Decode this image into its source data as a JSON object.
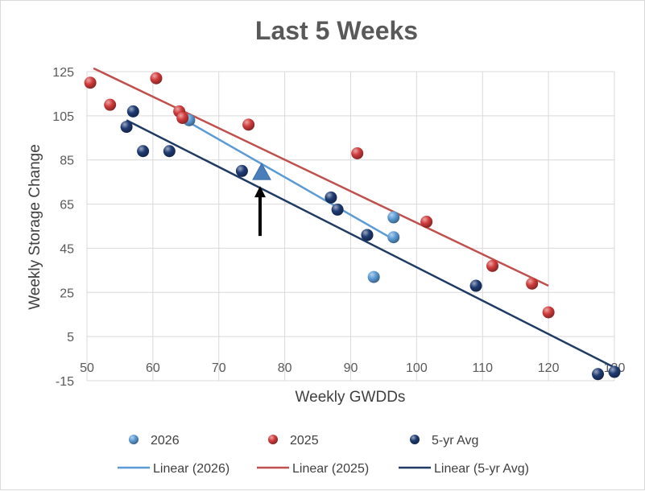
{
  "chart_data": {
    "type": "scatter",
    "title": "Last 5 Weeks",
    "xlabel": "Weekly GWDDs",
    "ylabel": "Weekly Storage Change",
    "xlim": [
      50,
      130
    ],
    "ylim": [
      -15,
      125
    ],
    "x_ticks": [
      50,
      60,
      70,
      80,
      90,
      100,
      110,
      120,
      130
    ],
    "x_tick_labels": [
      "50",
      "60",
      "70",
      "80",
      "90",
      "100",
      "110",
      "120",
      "130"
    ],
    "y_ticks": [
      -15,
      5,
      25,
      45,
      65,
      85,
      105,
      125
    ],
    "y_tick_labels": [
      "-15",
      "5",
      "25",
      "45",
      "65",
      "85",
      "105",
      "125"
    ],
    "grid": true,
    "legend_position": "bottom",
    "series": [
      {
        "name": "2026",
        "color": "#5b9bd5",
        "points": [
          [
            65.5,
            103
          ],
          [
            92.5,
            51
          ],
          [
            93.5,
            32
          ],
          [
            96.5,
            59
          ],
          [
            96.5,
            50
          ]
        ]
      },
      {
        "name": "2025",
        "color": "#d13b3b",
        "points": [
          [
            50.5,
            120
          ],
          [
            53.5,
            110
          ],
          [
            60.5,
            122
          ],
          [
            64,
            107
          ],
          [
            64.5,
            104
          ],
          [
            74.5,
            101
          ],
          [
            91,
            88
          ],
          [
            101.5,
            57
          ],
          [
            111.5,
            37
          ],
          [
            117.5,
            29
          ],
          [
            120,
            16
          ]
        ]
      },
      {
        "name": "5-yr Avg",
        "color": "#1f3b73",
        "points": [
          [
            56,
            100
          ],
          [
            57,
            107
          ],
          [
            58.5,
            89
          ],
          [
            62.5,
            89
          ],
          [
            73.5,
            80
          ],
          [
            87,
            68
          ],
          [
            88,
            62.5
          ],
          [
            92.5,
            51
          ],
          [
            109,
            28
          ],
          [
            127.5,
            -12
          ],
          [
            130,
            -11
          ]
        ]
      }
    ],
    "trendlines": [
      {
        "name": "Linear (2026)",
        "color": "#5b9bd5",
        "from": [
          65.5,
          102
        ],
        "to": [
          96.5,
          49
        ]
      },
      {
        "name": "Linear (2025)",
        "color": "#c0504d",
        "from": [
          51,
          126.5
        ],
        "to": [
          120,
          28
        ]
      },
      {
        "name": "Linear (5-yr Avg)",
        "color": "#1f3b64",
        "from": [
          56,
          103
        ],
        "to": [
          130,
          -9
        ]
      }
    ],
    "marker": {
      "shape": "triangle",
      "color": "#4a7ebb",
      "point": [
        76.5,
        79
      ],
      "annotation": "arrow-up"
    }
  }
}
